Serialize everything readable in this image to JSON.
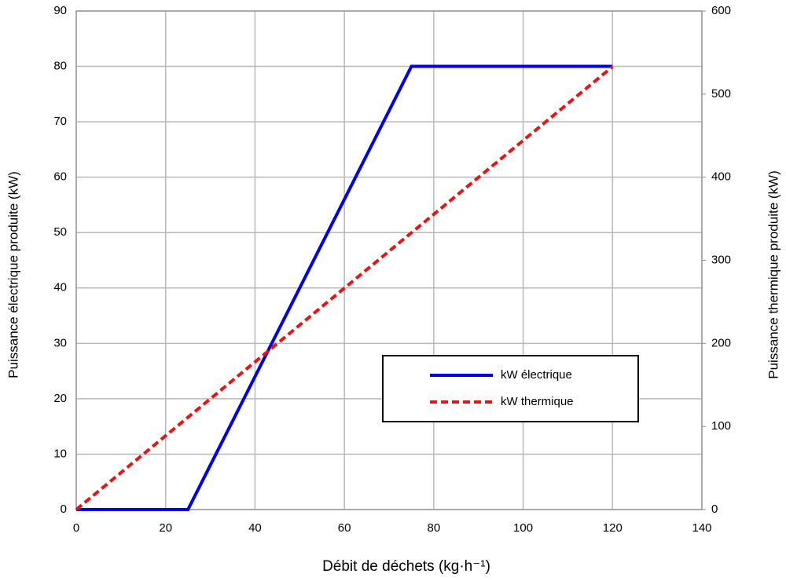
{
  "chart_data": {
    "type": "line",
    "xlabel": "Débit de déchets (kg·h⁻¹)",
    "ylabel": "Puissance électrique produite (kW)",
    "y2label": "Puissance thermique produite (kW)",
    "xlim": [
      0,
      140
    ],
    "xticks": [
      0,
      20,
      40,
      60,
      80,
      100,
      120,
      140
    ],
    "ylim": [
      0,
      90
    ],
    "yticks": [
      0,
      10,
      20,
      30,
      40,
      50,
      60,
      70,
      80,
      90
    ],
    "y2lim": [
      0,
      600
    ],
    "y2ticks": [
      0,
      100,
      200,
      300,
      400,
      500,
      600
    ],
    "grid": true,
    "legend": "lower right",
    "series": [
      {
        "name": "kW électrique",
        "color": "#0000ee",
        "style": "solid",
        "x": [
          0,
          25,
          75,
          120
        ],
        "values": [
          0,
          0,
          80,
          80
        ]
      },
      {
        "name": "kW thermique",
        "color": "#ee1111",
        "style": "dashed",
        "axis": "y2",
        "x": [
          0,
          120
        ],
        "values": [
          0,
          533
        ]
      }
    ]
  }
}
